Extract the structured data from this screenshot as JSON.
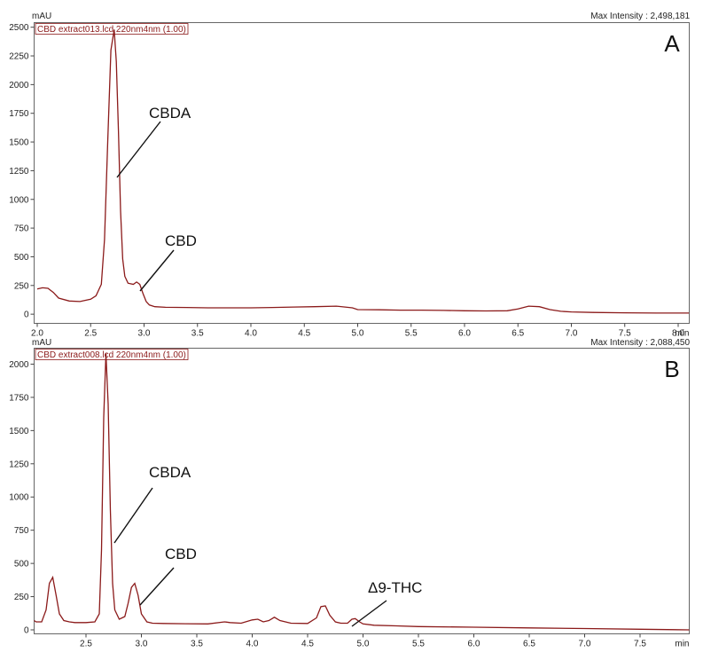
{
  "chart_data": [
    {
      "type": "line",
      "panel_label": "A",
      "legend": "CBD extract013.lcd 220nm4nm (1.00)",
      "max_intensity": "Max Intensity : 2,498,181",
      "ylabel": "mAU",
      "xlabel": "min",
      "xlim": [
        2.0,
        8.1
      ],
      "ylim": [
        -80,
        2540
      ],
      "xticks": [
        2.0,
        2.5,
        3.0,
        3.5,
        4.0,
        4.5,
        5.0,
        5.5,
        6.0,
        6.5,
        7.0,
        7.5,
        8.0
      ],
      "xtick_labels": [
        "2.0",
        "2.5",
        "3.0",
        "3.5",
        "4.0",
        "4.5",
        "5.0",
        "5.5",
        "6.0",
        "6.5",
        "7.0",
        "7.5",
        "8.0"
      ],
      "yticks": [
        0,
        250,
        500,
        750,
        1000,
        1250,
        1500,
        1750,
        2000,
        2250,
        2500
      ],
      "ytick_labels": [
        "0",
        "250",
        "500",
        "750",
        "1000",
        "1250",
        "1500",
        "1750",
        "2000",
        "2250",
        "2500"
      ],
      "line_color": "#8b1a1a",
      "series": [
        {
          "x": [
            2.0,
            2.05,
            2.1,
            2.15,
            2.2,
            2.3,
            2.4,
            2.5,
            2.55,
            2.6,
            2.63,
            2.66,
            2.69,
            2.72,
            2.74,
            2.76,
            2.78,
            2.8,
            2.82,
            2.85,
            2.9,
            2.93,
            2.96,
            2.99,
            3.02,
            3.05,
            3.1,
            3.2,
            3.4,
            3.6,
            3.8,
            4.0,
            4.2,
            4.4,
            4.6,
            4.8,
            4.95,
            5.0,
            5.2,
            5.4,
            5.6,
            5.8,
            6.0,
            6.2,
            6.4,
            6.5,
            6.6,
            6.7,
            6.8,
            6.9,
            7.0,
            7.2,
            7.5,
            7.8,
            8.0,
            8.1
          ],
          "y": [
            220,
            230,
            225,
            190,
            140,
            115,
            110,
            130,
            160,
            260,
            650,
            1500,
            2300,
            2480,
            2200,
            1600,
            900,
            480,
            330,
            270,
            260,
            280,
            260,
            180,
            110,
            80,
            65,
            60,
            58,
            55,
            55,
            55,
            58,
            62,
            65,
            70,
            55,
            40,
            38,
            35,
            35,
            33,
            30,
            28,
            30,
            45,
            70,
            65,
            40,
            25,
            20,
            15,
            12,
            10,
            10,
            10
          ]
        }
      ],
      "annotations": [
        {
          "text": "CBDA",
          "x": 2.73,
          "y": 1230
        },
        {
          "text": "CBD",
          "x": 2.99,
          "y": 210
        }
      ]
    },
    {
      "type": "line",
      "panel_label": "B",
      "legend": "CBD extract008.lcd 220nm4nm (1.00)",
      "max_intensity": "Max Intensity : 2,088,450",
      "ylabel": "mAU",
      "xlabel": "min",
      "xlim": [
        2.0,
        8.0
      ],
      "ylim": [
        -30,
        2120
      ],
      "xticks": [
        2.5,
        3.0,
        3.5,
        4.0,
        4.5,
        5.0,
        5.5,
        6.0,
        6.5,
        7.0,
        7.5
      ],
      "xtick_labels": [
        "2.5",
        "3.0",
        "3.5",
        "4.0",
        "4.5",
        "5.0",
        "5.5",
        "6.0",
        "6.5",
        "7.0",
        "7.5"
      ],
      "yticks": [
        0,
        250,
        500,
        750,
        1000,
        1250,
        1500,
        1750,
        2000
      ],
      "ytick_labels": [
        "0",
        "250",
        "500",
        "750",
        "1000",
        "1250",
        "1500",
        "1750",
        "2000"
      ],
      "line_color": "#8b1a1a",
      "series": [
        {
          "x": [
            2.0,
            2.05,
            2.1,
            2.14,
            2.17,
            2.2,
            2.23,
            2.26,
            2.3,
            2.35,
            2.4,
            2.5,
            2.58,
            2.62,
            2.64,
            2.66,
            2.68,
            2.7,
            2.72,
            2.74,
            2.76,
            2.8,
            2.85,
            2.88,
            2.91,
            2.94,
            2.97,
            3.0,
            3.05,
            3.1,
            3.2,
            3.4,
            3.6,
            3.75,
            3.8,
            3.9,
            4.0,
            4.05,
            4.1,
            4.15,
            4.2,
            4.25,
            4.35,
            4.5,
            4.58,
            4.62,
            4.66,
            4.7,
            4.75,
            4.8,
            4.86,
            4.9,
            4.93,
            4.97,
            5.0,
            5.1,
            5.3,
            5.5,
            6.0,
            6.5,
            7.0,
            7.5,
            8.0
          ],
          "y": [
            70,
            60,
            60,
            150,
            350,
            395,
            260,
            120,
            70,
            60,
            55,
            55,
            60,
            120,
            600,
            1600,
            2080,
            1700,
            900,
            350,
            150,
            80,
            100,
            200,
            320,
            350,
            260,
            120,
            60,
            50,
            48,
            46,
            45,
            60,
            55,
            50,
            75,
            80,
            60,
            70,
            95,
            70,
            50,
            48,
            90,
            175,
            180,
            110,
            60,
            50,
            50,
            80,
            85,
            60,
            45,
            35,
            30,
            25,
            20,
            15,
            10,
            5,
            0
          ]
        }
      ],
      "annotations": [
        {
          "text": "CBDA",
          "x": 2.72,
          "y": 690
        },
        {
          "text": "CBD",
          "x": 2.97,
          "y": 220
        },
        {
          "text": "Δ9-THC",
          "x": 4.92,
          "y": 60
        }
      ]
    }
  ]
}
